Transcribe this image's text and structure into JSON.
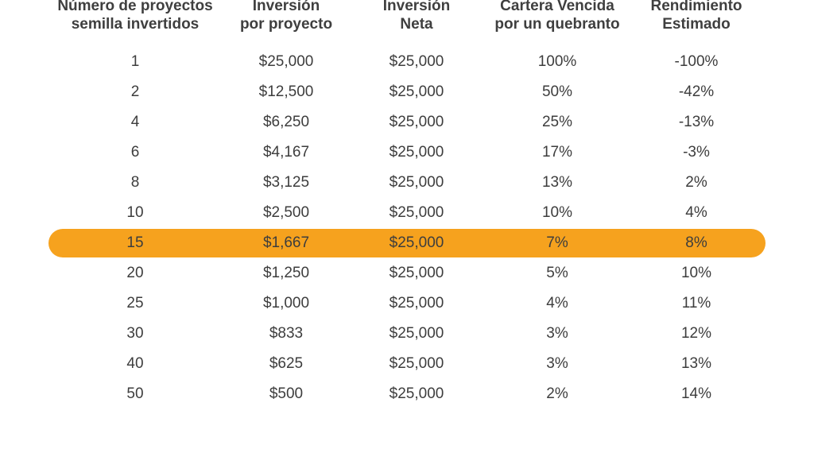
{
  "headers": [
    {
      "line1": "Número de proyectos",
      "line2": "semilla invertidos"
    },
    {
      "line1": "Inversión",
      "line2": "por proyecto"
    },
    {
      "line1": "Inversión",
      "line2": "Neta"
    },
    {
      "line1": "Cartera Vencida",
      "line2": "por un quebranto"
    },
    {
      "line1": "Rendimiento",
      "line2": "Estimado"
    }
  ],
  "highlight_color": "#f6a21e",
  "highlighted_row": 6,
  "rows": [
    [
      "1",
      "$25,000",
      "$25,000",
      "100%",
      "-100%"
    ],
    [
      "2",
      "$12,500",
      "$25,000",
      "50%",
      "-42%"
    ],
    [
      "4",
      "$6,250",
      "$25,000",
      "25%",
      "-13%"
    ],
    [
      "6",
      "$4,167",
      "$25,000",
      "17%",
      "-3%"
    ],
    [
      "8",
      "$3,125",
      "$25,000",
      "13%",
      "2%"
    ],
    [
      "10",
      "$2,500",
      "$25,000",
      "10%",
      "4%"
    ],
    [
      "15",
      "$1,667",
      "$25,000",
      "7%",
      "8%"
    ],
    [
      "20",
      "$1,250",
      "$25,000",
      "5%",
      "10%"
    ],
    [
      "25",
      "$1,000",
      "$25,000",
      "4%",
      "11%"
    ],
    [
      "30",
      "$833",
      "$25,000",
      "3%",
      "12%"
    ],
    [
      "40",
      "$625",
      "$25,000",
      "3%",
      "13%"
    ],
    [
      "50",
      "$500",
      "$25,000",
      "2%",
      "14%"
    ]
  ]
}
